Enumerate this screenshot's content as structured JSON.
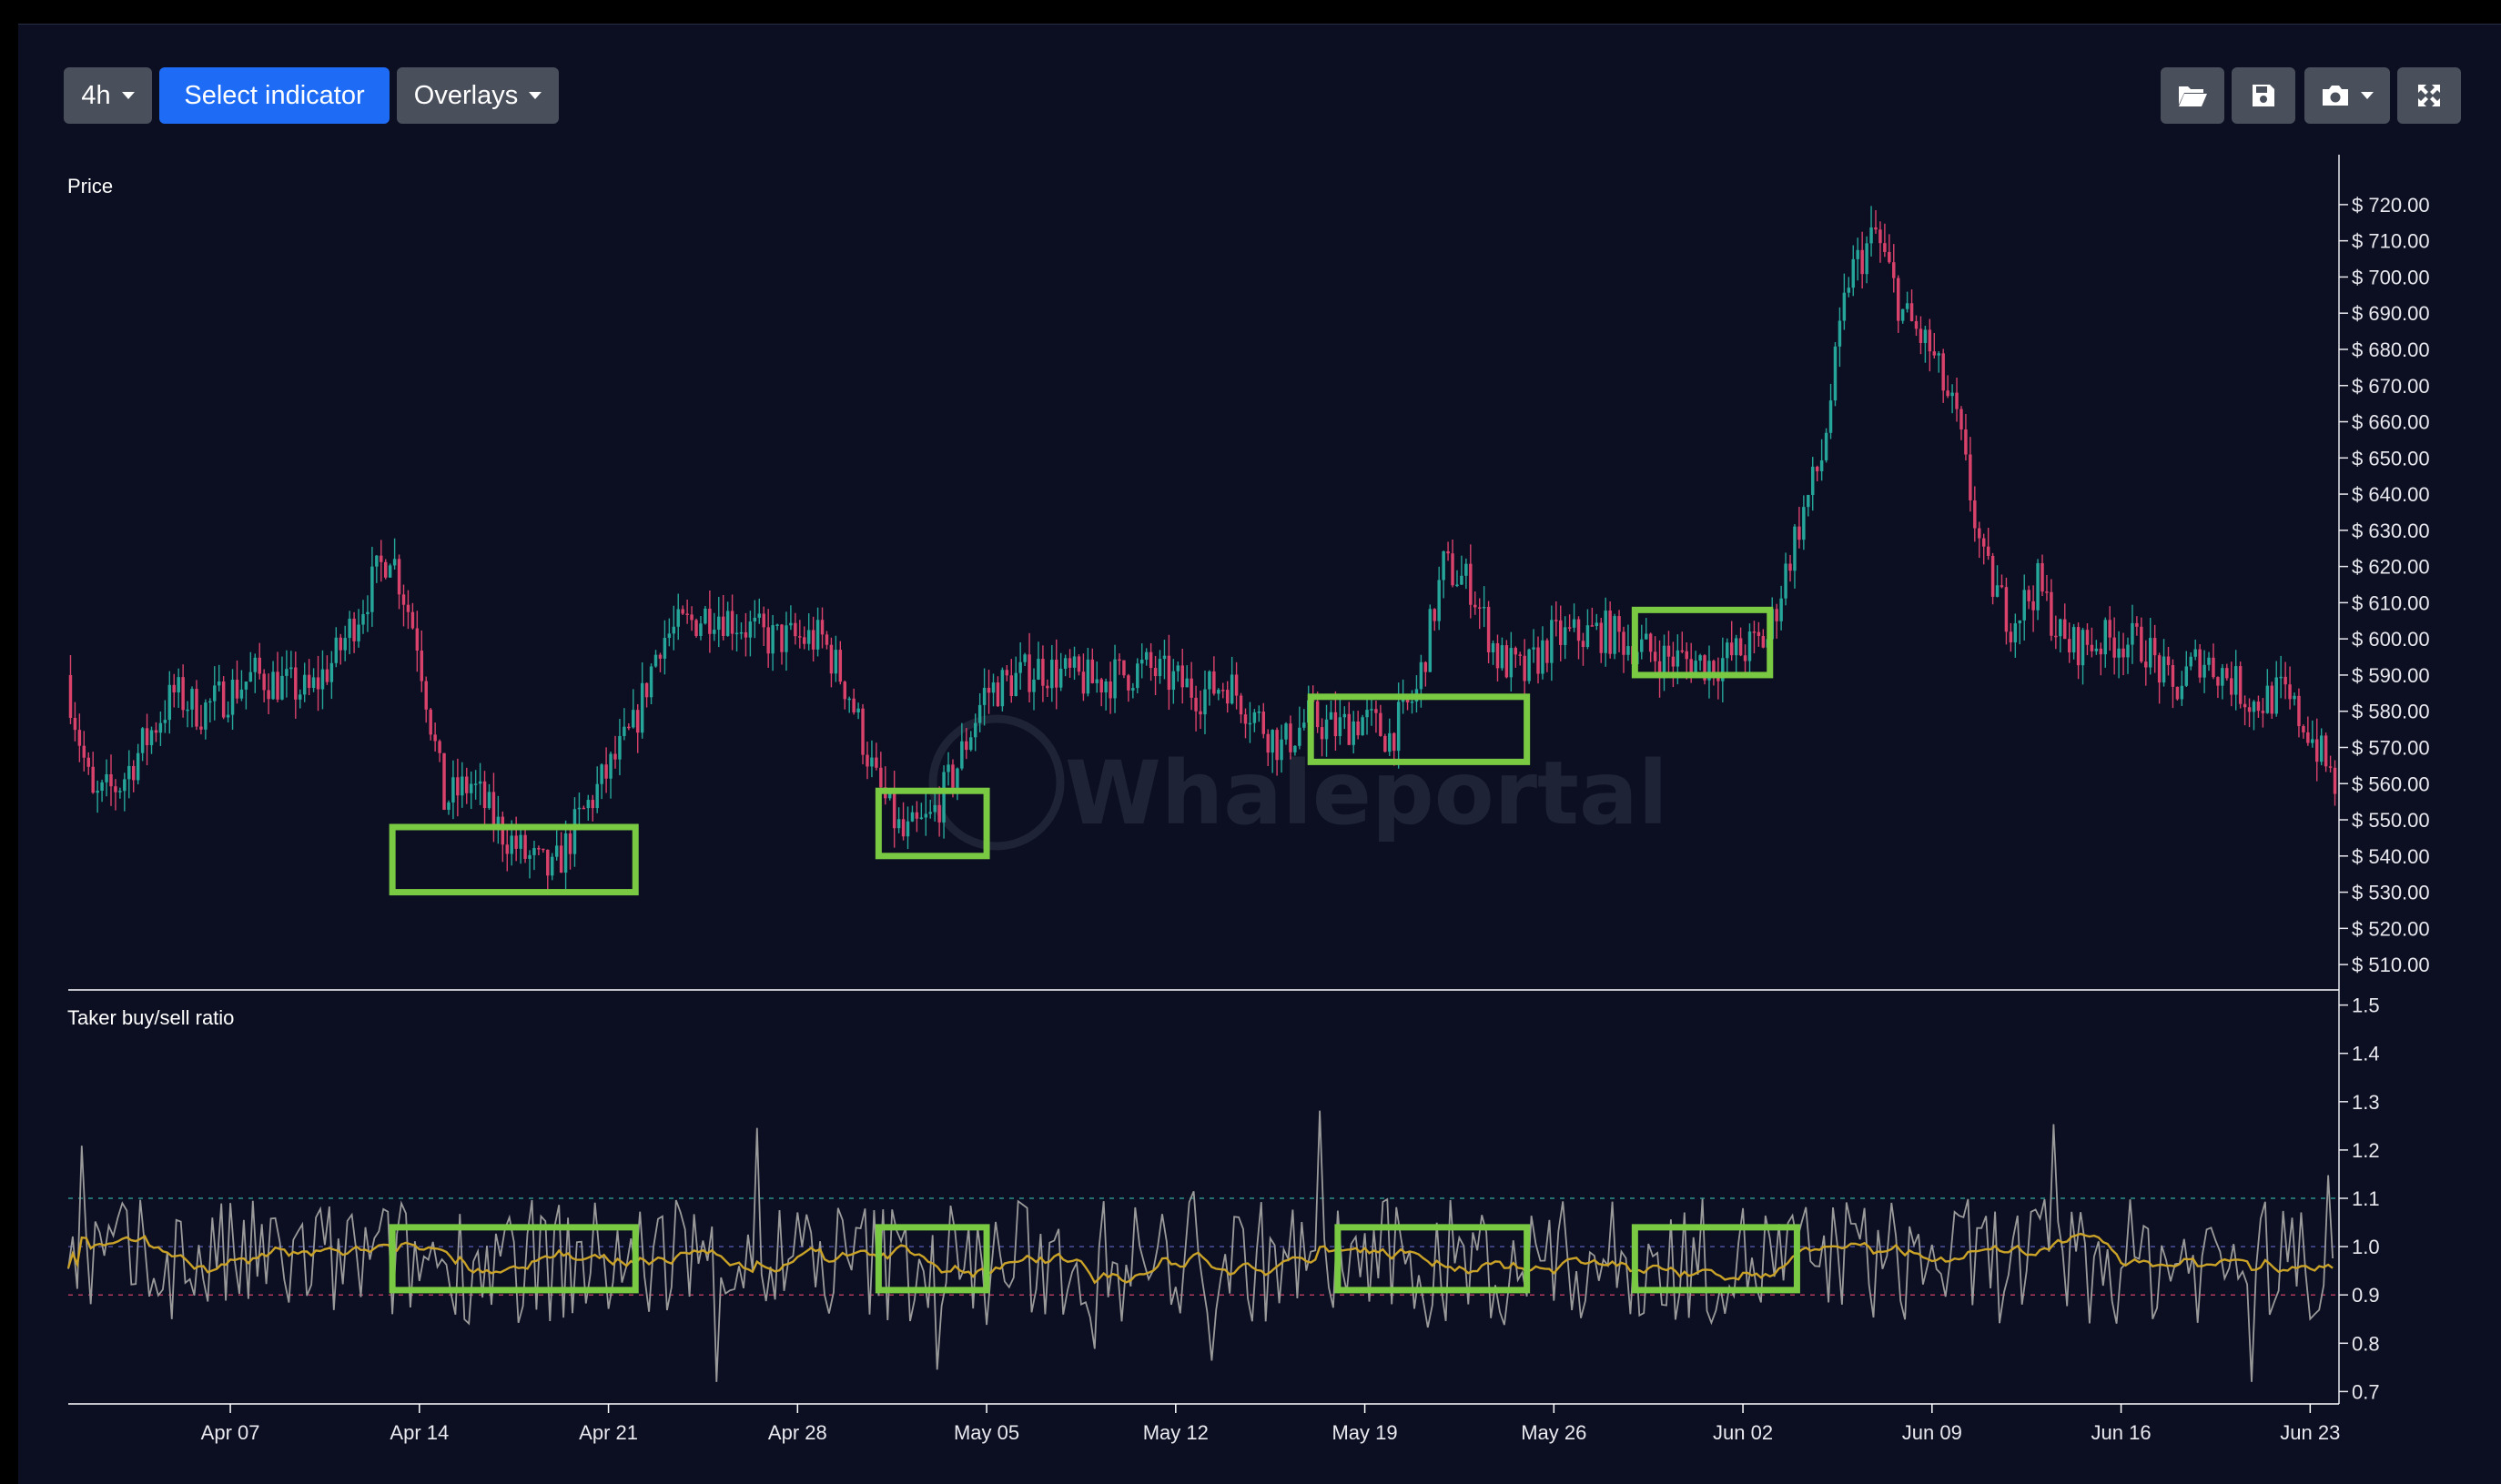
{
  "toolbar": {
    "timeframe": "4h",
    "select_indicator": "Select indicator",
    "overlays": "Overlays"
  },
  "watermark": "Whaleportal",
  "colors": {
    "background": "#0c0f22",
    "up": "#26a69a",
    "down": "#d9426b",
    "highlight": "#7ac943",
    "ratio_line": "#9a9a9a",
    "ratio_ma": "#c9a227",
    "level_high": "#2f8f8a",
    "level_low": "#b03a5b"
  },
  "chart_data": [
    {
      "type": "candlestick",
      "title": "Price",
      "y_tick_labels": [
        "$ 720.00",
        "$ 710.00",
        "$ 700.00",
        "$ 690.00",
        "$ 680.00",
        "$ 670.00",
        "$ 660.00",
        "$ 650.00",
        "$ 640.00",
        "$ 630.00",
        "$ 620.00",
        "$ 610.00",
        "$ 600.00",
        "$ 590.00",
        "$ 580.00",
        "$ 570.00",
        "$ 560.00",
        "$ 550.00",
        "$ 540.00",
        "$ 530.00",
        "$ 520.00",
        "$ 510.00"
      ],
      "ylim": [
        505,
        725
      ],
      "x_range": [
        "2024-04-01",
        "2024-06-24"
      ],
      "price_path": [
        [
          "2024-04-01",
          590
        ],
        [
          "2024-04-02",
          555
        ],
        [
          "2024-04-03",
          560
        ],
        [
          "2024-04-05",
          585
        ],
        [
          "2024-04-06",
          580
        ],
        [
          "2024-04-08",
          590
        ],
        [
          "2024-04-10",
          585
        ],
        [
          "2024-04-11",
          595
        ],
        [
          "2024-04-12",
          610
        ],
        [
          "2024-04-13",
          625
        ],
        [
          "2024-04-14",
          600
        ],
        [
          "2024-04-15",
          555
        ],
        [
          "2024-04-16",
          560
        ],
        [
          "2024-04-17",
          548
        ],
        [
          "2024-04-18",
          540
        ],
        [
          "2024-04-19",
          535
        ],
        [
          "2024-04-20",
          550
        ],
        [
          "2024-04-22",
          575
        ],
        [
          "2024-04-23",
          600
        ],
        [
          "2024-04-25",
          608
        ],
        [
          "2024-04-27",
          600
        ],
        [
          "2024-04-29",
          600
        ],
        [
          "2024-04-30",
          585
        ],
        [
          "2024-05-01",
          560
        ],
        [
          "2024-05-02",
          545
        ],
        [
          "2024-05-03",
          550
        ],
        [
          "2024-05-04",
          565
        ],
        [
          "2024-05-05",
          585
        ],
        [
          "2024-05-07",
          592
        ],
        [
          "2024-05-09",
          588
        ],
        [
          "2024-05-11",
          592
        ],
        [
          "2024-05-13",
          585
        ],
        [
          "2024-05-14",
          588
        ],
        [
          "2024-05-16",
          570
        ],
        [
          "2024-05-17",
          578
        ],
        [
          "2024-05-18",
          575
        ],
        [
          "2024-05-19",
          578
        ],
        [
          "2024-05-20",
          573
        ],
        [
          "2024-05-21",
          585
        ],
        [
          "2024-05-22",
          620
        ],
        [
          "2024-05-23",
          615
        ],
        [
          "2024-05-24",
          595
        ],
        [
          "2024-05-25",
          590
        ],
        [
          "2024-05-26",
          600
        ],
        [
          "2024-05-28",
          602
        ],
        [
          "2024-05-30",
          595
        ],
        [
          "2024-06-01",
          593
        ],
        [
          "2024-06-03",
          600
        ],
        [
          "2024-06-04",
          628
        ],
        [
          "2024-06-05",
          650
        ],
        [
          "2024-06-06",
          700
        ],
        [
          "2024-06-07",
          712
        ],
        [
          "2024-06-08",
          690
        ],
        [
          "2024-06-09",
          680
        ],
        [
          "2024-06-10",
          660
        ],
        [
          "2024-06-11",
          620
        ],
        [
          "2024-06-12",
          605
        ],
        [
          "2024-06-13",
          615
        ],
        [
          "2024-06-14",
          598
        ],
        [
          "2024-06-16",
          600
        ],
        [
          "2024-06-17",
          598
        ],
        [
          "2024-06-18",
          585
        ],
        [
          "2024-06-19",
          595
        ],
        [
          "2024-06-20",
          590
        ],
        [
          "2024-06-21",
          582
        ],
        [
          "2024-06-22",
          585
        ],
        [
          "2024-06-23",
          575
        ],
        [
          "2024-06-24",
          560
        ]
      ],
      "highlight_boxes": [
        {
          "x": [
            "2024-04-13",
            "2024-04-22"
          ],
          "y": [
            530,
            548
          ]
        },
        {
          "x": [
            "2024-05-01",
            "2024-05-05"
          ],
          "y": [
            540,
            558
          ]
        },
        {
          "x": [
            "2024-05-17",
            "2024-05-25"
          ],
          "y": [
            566,
            584
          ]
        },
        {
          "x": [
            "2024-05-29",
            "2024-06-03"
          ],
          "y": [
            590,
            608
          ]
        }
      ]
    },
    {
      "type": "line",
      "title": "Taker buy/sell ratio",
      "y_tick_labels": [
        "1.5",
        "1.4",
        "1.3",
        "1.2",
        "1.1",
        "1.0",
        "0.9",
        "0.8",
        "0.7"
      ],
      "ylim": [
        0.68,
        1.52
      ],
      "reference_levels": [
        1.1,
        1.0,
        0.9
      ],
      "x_tick_labels": [
        "Apr 07",
        "Apr 14",
        "Apr 21",
        "Apr 28",
        "May 05",
        "May 12",
        "May 19",
        "May 26",
        "Jun 02",
        "Jun 09",
        "Jun 16",
        "Jun 23"
      ],
      "highlight_boxes": [
        {
          "x": [
            "2024-04-13",
            "2024-04-22"
          ],
          "y": [
            0.91,
            1.04
          ]
        },
        {
          "x": [
            "2024-05-01",
            "2024-05-05"
          ],
          "y": [
            0.91,
            1.04
          ]
        },
        {
          "x": [
            "2024-05-18",
            "2024-05-25"
          ],
          "y": [
            0.91,
            1.04
          ]
        },
        {
          "x": [
            "2024-05-29",
            "2024-06-04"
          ],
          "y": [
            0.91,
            1.04
          ]
        }
      ]
    }
  ]
}
